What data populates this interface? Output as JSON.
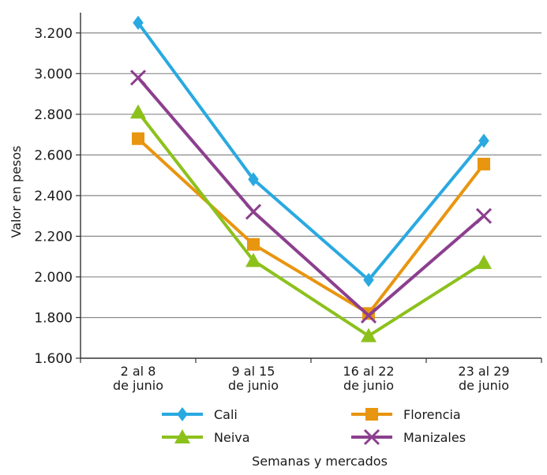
{
  "chart_data": {
    "type": "line",
    "categories": [
      [
        "2 al 8",
        "de junio"
      ],
      [
        "9 al 15",
        "de junio"
      ],
      [
        "16 al 22",
        "de junio"
      ],
      [
        "23 al 29",
        "de junio"
      ]
    ],
    "series": [
      {
        "name": "Cali",
        "values": [
          3250,
          2480,
          1985,
          2670
        ],
        "color": "#2aa9e0",
        "marker": "diamond"
      },
      {
        "name": "Florencia",
        "values": [
          2680,
          2160,
          1820,
          2555
        ],
        "color": "#e8950f",
        "marker": "square"
      },
      {
        "name": "Neiva",
        "values": [
          2810,
          2080,
          1710,
          2070
        ],
        "color": "#8cc11c",
        "marker": "triangle"
      },
      {
        "name": "Manizales",
        "values": [
          2980,
          2320,
          1810,
          2300
        ],
        "color": "#8c3f8e",
        "marker": "x"
      }
    ],
    "ylabel": "Valor en pesos",
    "xlabel": "Semanas y mercados",
    "ylim": [
      1600,
      3300
    ],
    "yticks": [
      1600,
      1800,
      2000,
      2200,
      2400,
      2600,
      2800,
      3000,
      3200
    ],
    "ytick_labels": [
      "1.600",
      "1.800",
      "2.000",
      "2.200",
      "2.400",
      "2.600",
      "2.800",
      "3.000",
      "3.200"
    ],
    "grid": true,
    "legend_position": "bottom"
  }
}
